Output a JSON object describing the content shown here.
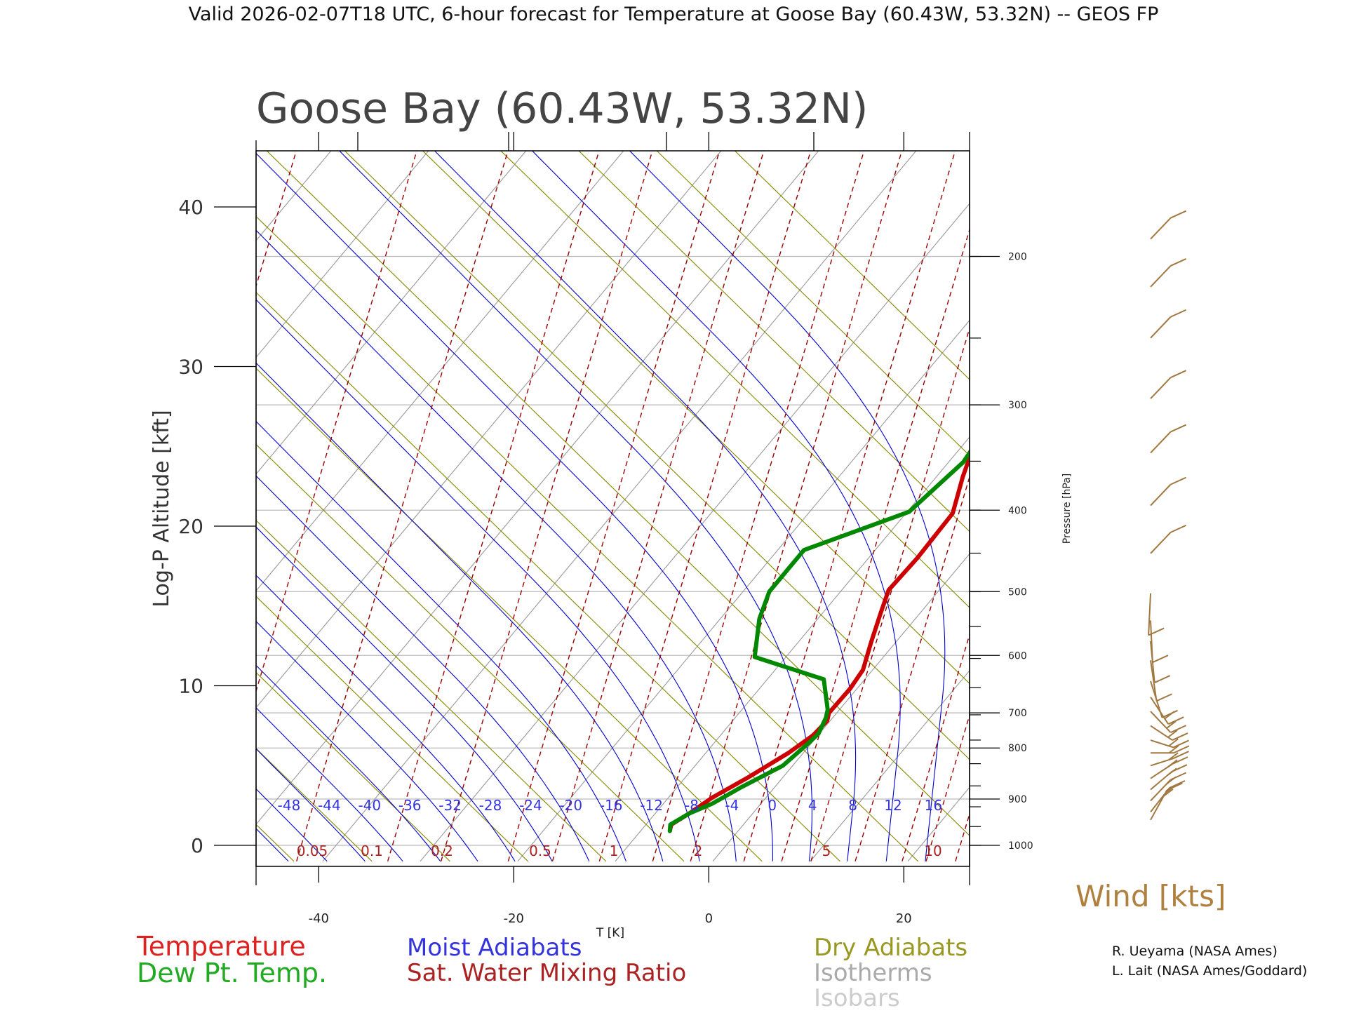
{
  "header": "Valid 2026-02-07T18 UTC, 6-hour forecast for Temperature at Goose Bay (60.43W, 53.32N) -- GEOS FP",
  "colors": {
    "temperature": "#cc0000",
    "dewpoint": "#008800",
    "moist_adiabat": "#0000cc",
    "mixing_ratio": "#990000",
    "dry_adiabat": "#888800",
    "isotherm": "#999999",
    "isobar": "#bbbbbb",
    "wind": "#a07840",
    "text": "#222222"
  },
  "credits": [
    "R. Ueyama (NASA Ames)",
    "L. Lait (NASA Ames/Goddard)"
  ],
  "wind_title": "Wind [kts]",
  "chart_data": {
    "type": "line",
    "title": "Goose Bay (60.43W, 53.32N)",
    "xlabel": "T [K]",
    "ylabel": "Log-P Altitude [kft]",
    "y2label": "Pressure [hPa]",
    "xlim": [
      -50,
      20
    ],
    "ylim": [
      -1,
      44
    ],
    "x_ticks": [
      -40,
      -20,
      0,
      20
    ],
    "x_tick_labels": [
      "-40",
      "-20",
      "0",
      "20"
    ],
    "y_ticks": [
      0,
      10,
      20,
      30,
      40
    ],
    "y_tick_labels": [
      "0",
      "10",
      "20",
      "30",
      "40"
    ],
    "pressure_levels": [
      {
        "p": 1000,
        "y": 0.0,
        "label": "1000"
      },
      {
        "p": 900,
        "y": 2.9,
        "label": "900"
      },
      {
        "p": 800,
        "y": 6.1,
        "label": "800"
      },
      {
        "p": 700,
        "y": 8.3,
        "label": "700"
      },
      {
        "p": 600,
        "y": 11.9,
        "label": "600"
      },
      {
        "p": 500,
        "y": 15.9,
        "label": "500"
      },
      {
        "p": 400,
        "y": 21.0,
        "label": "400"
      },
      {
        "p": 300,
        "y": 27.6,
        "label": "300"
      },
      {
        "p": 200,
        "y": 36.9,
        "label": "200"
      }
    ],
    "pressure_minor_ticks": [
      1000,
      950,
      900,
      850,
      800,
      750,
      700,
      650,
      600,
      550,
      500,
      450,
      400,
      350,
      300,
      250,
      200
    ],
    "series": [
      {
        "name": "Temperature",
        "color": "#cc0000",
        "points": [
          [
            -7.0,
            0.9
          ],
          [
            -7.4,
            1.3
          ],
          [
            -6.5,
            2.0
          ],
          [
            -5.5,
            3.0
          ],
          [
            -3.5,
            4.3
          ],
          [
            -1.5,
            5.8
          ],
          [
            -0.5,
            6.9
          ],
          [
            -0.3,
            7.8
          ],
          [
            -0.8,
            8.3
          ],
          [
            -0.7,
            9.8
          ],
          [
            -1.0,
            11.0
          ],
          [
            -2.5,
            12.7
          ],
          [
            -4.0,
            14.5
          ],
          [
            -5.2,
            16.0
          ],
          [
            -5.0,
            18.0
          ],
          [
            -5.2,
            20.8
          ],
          [
            -7.3,
            23.1
          ],
          [
            -8.4,
            24.5
          ],
          [
            -9.5,
            27.5
          ],
          [
            -5.5,
            31.8
          ],
          [
            1.0,
            34.8
          ],
          [
            6.7,
            37.0
          ],
          [
            16.6,
            43.3
          ]
        ]
      },
      {
        "name": "Dew Pt. Temp.",
        "color": "#008800",
        "points": [
          [
            -7.0,
            0.9
          ],
          [
            -7.5,
            1.3
          ],
          [
            -6.5,
            2.0
          ],
          [
            -5.0,
            2.6
          ],
          [
            -3.5,
            3.6
          ],
          [
            -1.0,
            5.0
          ],
          [
            -0.3,
            6.4
          ],
          [
            -0.1,
            7.0
          ],
          [
            -0.7,
            8.0
          ],
          [
            -1.2,
            8.5
          ],
          [
            -4.2,
            10.4
          ],
          [
            -13.2,
            11.8
          ],
          [
            -16.0,
            14.2
          ],
          [
            -17.3,
            15.9
          ],
          [
            -17.3,
            18.5
          ],
          [
            -9.8,
            20.9
          ],
          [
            -8.5,
            24.0
          ],
          [
            -9.4,
            27.5
          ],
          [
            -8.9,
            31.5
          ],
          [
            -9.8,
            33.8
          ],
          [
            -12.3,
            37.0
          ],
          [
            -7.8,
            43.3
          ]
        ]
      }
    ],
    "moist_adiabat_labels": [
      "-48",
      "-44",
      "-40",
      "-36",
      "-32",
      "-28",
      "-24",
      "-20",
      "-16",
      "-12",
      "-8",
      "-4",
      "0",
      "4",
      "8",
      "12",
      "16"
    ],
    "mixing_ratio_labels": [
      "0.05",
      "0.1",
      "0.2",
      "0.5",
      "1",
      "2",
      "5",
      "10"
    ],
    "wind_barbs": [
      {
        "y": 0.8,
        "speed": 15,
        "dir": 225
      },
      {
        "y": 1.3,
        "speed": 15,
        "dir": 235
      },
      {
        "y": 2.0,
        "speed": 15,
        "dir": 240
      },
      {
        "y": 2.7,
        "speed": 15,
        "dir": 245
      },
      {
        "y": 3.4,
        "speed": 15,
        "dir": 250
      },
      {
        "y": 4.2,
        "speed": 15,
        "dir": 260
      },
      {
        "y": 5.0,
        "speed": 15,
        "dir": 270
      },
      {
        "y": 5.8,
        "speed": 15,
        "dir": 280
      },
      {
        "y": 6.7,
        "speed": 15,
        "dir": 290
      },
      {
        "y": 7.6,
        "speed": 15,
        "dir": 300
      },
      {
        "y": 8.5,
        "speed": 15,
        "dir": 310
      },
      {
        "y": 9.5,
        "speed": 10,
        "dir": 330
      },
      {
        "y": 10.8,
        "speed": 10,
        "dir": 345
      },
      {
        "y": 12.0,
        "speed": 10,
        "dir": 350
      },
      {
        "y": 13.3,
        "speed": 10,
        "dir": 355
      },
      {
        "y": 15.0,
        "speed": 10,
        "dir": 5
      },
      {
        "y": 17.5,
        "speed": 10,
        "dir": 240
      },
      {
        "y": 20.5,
        "speed": 10,
        "dir": 240
      },
      {
        "y": 23.8,
        "speed": 10,
        "dir": 240
      },
      {
        "y": 27.2,
        "speed": 10,
        "dir": 240
      },
      {
        "y": 31.0,
        "speed": 10,
        "dir": 240
      },
      {
        "y": 34.2,
        "speed": 10,
        "dir": 240
      },
      {
        "y": 37.2,
        "speed": 10,
        "dir": 240
      }
    ],
    "legend": [
      {
        "label": "Temperature",
        "color": "#dd2222"
      },
      {
        "label": "Dew Pt. Temp.",
        "color": "#22aa22"
      },
      {
        "label": "Moist Adiabats",
        "color": "#3333dd"
      },
      {
        "label": "Sat. Water Mixing Ratio",
        "color": "#aa2222"
      },
      {
        "label": "Dry Adiabats",
        "color": "#999922"
      },
      {
        "label": "Isotherms",
        "color": "#aaaaaa"
      },
      {
        "label": "Isobars",
        "color": "#cccccc"
      }
    ]
  }
}
